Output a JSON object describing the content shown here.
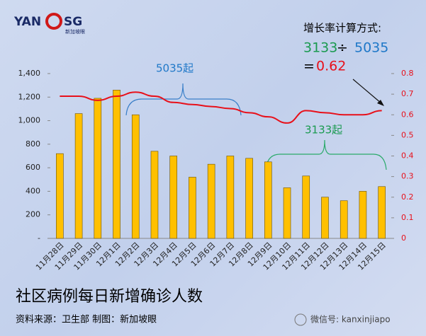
{
  "chart_data": {
    "type": "bar_line",
    "title": "社区病例每日新增确诊人数",
    "source": "资料来源：卫生部    制图：新加坡眼",
    "logo": {
      "left": "YAN",
      "right": "SG",
      "sub": "新加坡眼"
    },
    "watermark": "微信号: kanxinjiapo",
    "formula": {
      "title": "增长率计算方式:",
      "left": "3133",
      "operator": "÷",
      "right": "5035",
      "equals": "=",
      "result": "0.62"
    },
    "annotations": [
      "5035起",
      "3133起"
    ],
    "categories": [
      "11月28日",
      "11月29日",
      "11月30日",
      "12月1日",
      "12月2日",
      "12月3日",
      "12月4日",
      "12月5日",
      "12月6日",
      "12月7日",
      "12月8日",
      "12月9日",
      "12月10日",
      "12月11日",
      "12月12日",
      "12月13日",
      "12月14日",
      "12月15日"
    ],
    "series": [
      {
        "type": "bar",
        "color": "#ffc000",
        "values": [
          720,
          1060,
          1190,
          1260,
          1050,
          740,
          700,
          520,
          630,
          700,
          680,
          650,
          430,
          530,
          350,
          320,
          400,
          440
        ]
      },
      {
        "type": "line",
        "axis": "y2",
        "color": "#e8101a",
        "values": [
          0.69,
          0.69,
          0.67,
          0.69,
          0.71,
          0.69,
          0.66,
          0.65,
          0.64,
          0.63,
          0.61,
          0.59,
          0.56,
          0.62,
          0.61,
          0.6,
          0.6,
          0.62
        ]
      }
    ],
    "ylim": [
      0,
      1400
    ],
    "yticks": [
      {
        "value": 0,
        "label": "-"
      },
      200,
      400,
      600,
      800,
      {
        "value": 1000,
        "label": "1,000"
      },
      {
        "value": 1200,
        "label": "1,200"
      },
      {
        "value": 1400,
        "label": "1,400"
      }
    ],
    "y2lim": [
      0,
      0.8
    ],
    "y2ticks": [
      0,
      0.1,
      0.2,
      0.3,
      0.4,
      0.5,
      0.6,
      0.7,
      0.8
    ]
  }
}
